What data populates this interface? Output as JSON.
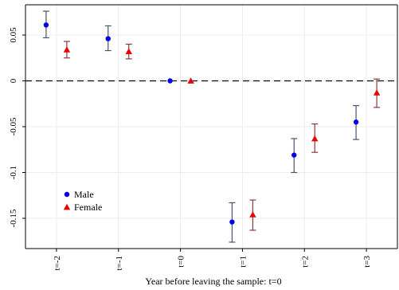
{
  "chart_data": {
    "type": "scatter",
    "title": "",
    "xlabel": "Year before leaving the sample: t=0",
    "ylabel": "",
    "categories": [
      "t=-2",
      "t=-1",
      "t=0",
      "t=1",
      "t=2",
      "t=3"
    ],
    "ylim": [
      -0.183,
      0.083
    ],
    "yticks": [
      0.05,
      0,
      -0.05,
      -0.1,
      -0.15
    ],
    "ytick_labels": [
      "0.05",
      "0",
      "-0.05",
      "-0.1",
      "-0.15"
    ],
    "grid": true,
    "reference_line": 0,
    "legend_position": "bottom-left",
    "series": [
      {
        "name": "Male",
        "marker": "circle",
        "color": "#0000ee",
        "errorbar_color": "#4a5568",
        "values": [
          0.061,
          0.046,
          0.0,
          -0.154,
          -0.081,
          -0.045
        ],
        "ci_low": [
          0.047,
          0.033,
          0.0,
          -0.176,
          -0.1,
          -0.064
        ],
        "ci_high": [
          0.076,
          0.06,
          0.0,
          -0.133,
          -0.063,
          -0.027
        ]
      },
      {
        "name": "Female",
        "marker": "triangle",
        "color": "#ee0000",
        "errorbar_color": "#8b3a3a",
        "values": [
          0.034,
          0.032,
          0.0,
          -0.146,
          -0.063,
          -0.013
        ],
        "ci_low": [
          0.025,
          0.024,
          0.0,
          -0.163,
          -0.078,
          -0.029
        ],
        "ci_high": [
          0.043,
          0.04,
          0.0,
          -0.13,
          -0.047,
          0.002
        ]
      }
    ]
  }
}
